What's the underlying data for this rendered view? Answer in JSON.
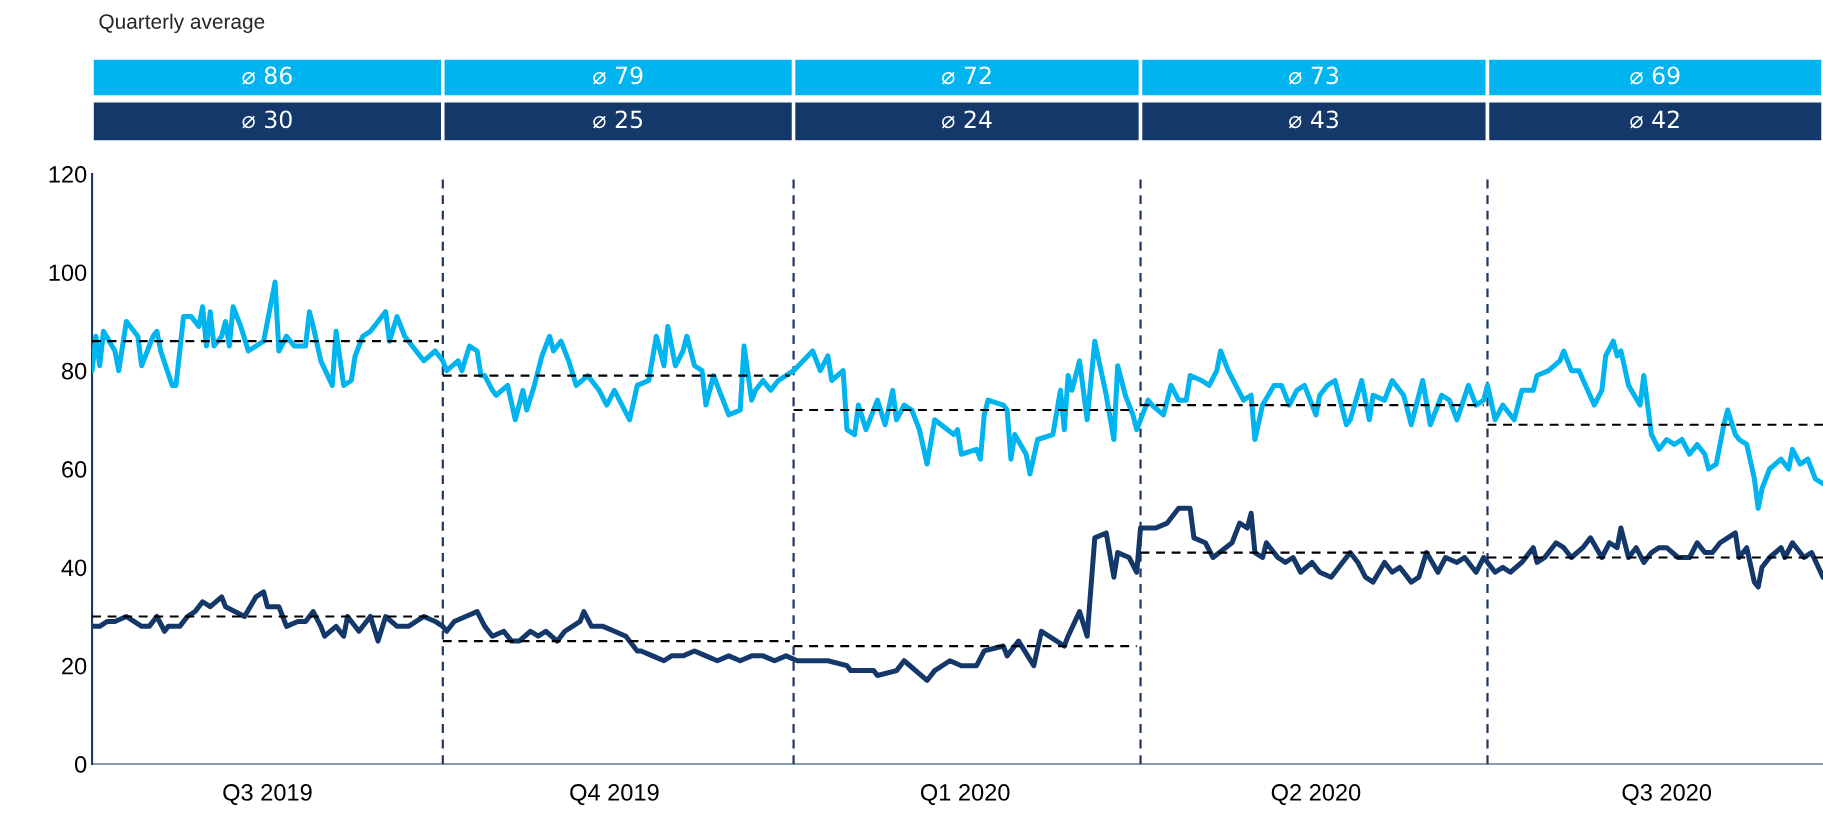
{
  "chart_data": {
    "type": "line",
    "annotations": [
      "Quarterly average",
      "⌀ 86",
      "⌀ 79",
      "⌀ 72",
      "⌀ 73",
      "⌀ 69",
      "⌀ 30",
      "⌀ 25",
      "⌀ 24",
      "⌀ 43",
      "⌀ 42"
    ],
    "xlim": [
      "2019-07-01",
      "2020-09-27"
    ],
    "xticks": [
      {
        "value": "2019-08-16",
        "label": "Q3 2019"
      },
      {
        "value": "2019-11-15",
        "label": "Q4 2019"
      },
      {
        "value": "2020-02-15",
        "label": "Q1 2020"
      },
      {
        "value": "2020-05-17",
        "label": "Q2 2020"
      },
      {
        "value": "2020-08-17",
        "label": "Q3 2020"
      }
    ],
    "ylim": [
      0,
      120
    ],
    "yticks": [
      0,
      20,
      40,
      60,
      80,
      100,
      120
    ],
    "grid": false,
    "ref_lines": [
      {
        "axis": "x",
        "value": "2019-10-01",
        "color": "#1f3864",
        "line_style": "dashed"
      },
      {
        "axis": "x",
        "value": "2020-01-01",
        "color": "#1f3864",
        "line_style": "dashed"
      },
      {
        "axis": "x",
        "value": "2020-04-01",
        "color": "#1f3864",
        "line_style": "dashed"
      },
      {
        "axis": "x",
        "value": "2020-07-01",
        "color": "#1f3864",
        "line_style": "dashed"
      }
    ],
    "series": [
      {
        "color": "#00b4ef",
        "x": [
          "2019-07-01",
          "2019-07-02",
          "2019-07-03",
          "2019-07-04",
          "2019-07-07",
          "2019-07-08",
          "2019-07-10",
          "2019-07-13",
          "2019-07-14",
          "2019-07-17",
          "2019-07-18",
          "2019-07-19",
          "2019-07-22",
          "2019-07-23",
          "2019-07-24",
          "2019-07-25",
          "2019-07-27",
          "2019-07-29",
          "2019-07-30",
          "2019-07-31",
          "2019-08-01",
          "2019-08-02",
          "2019-08-04",
          "2019-08-05",
          "2019-08-06",
          "2019-08-07",
          "2019-08-09",
          "2019-08-11",
          "2019-08-15",
          "2019-08-18",
          "2019-08-19",
          "2019-08-21",
          "2019-08-23",
          "2019-08-26",
          "2019-08-27",
          "2019-08-28",
          "2019-08-30",
          "2019-09-02",
          "2019-09-03",
          "2019-09-05",
          "2019-09-07",
          "2019-09-08",
          "2019-09-10",
          "2019-09-12",
          "2019-09-14",
          "2019-09-16",
          "2019-09-17",
          "2019-09-19",
          "2019-09-21",
          "2019-09-24",
          "2019-09-26",
          "2019-09-29",
          "2019-10-01",
          "2019-10-02",
          "2019-10-05",
          "2019-10-06",
          "2019-10-08",
          "2019-10-10",
          "2019-10-11",
          "2019-10-12",
          "2019-10-14",
          "2019-10-15",
          "2019-10-18",
          "2019-10-20",
          "2019-10-22",
          "2019-10-23",
          "2019-10-25",
          "2019-10-27",
          "2019-10-29",
          "2019-10-30",
          "2019-11-01",
          "2019-11-03",
          "2019-11-05",
          "2019-11-08",
          "2019-11-09",
          "2019-11-11",
          "2019-11-13",
          "2019-11-15",
          "2019-11-17",
          "2019-11-19",
          "2019-11-21",
          "2019-11-24",
          "2019-11-26",
          "2019-11-28",
          "2019-11-29",
          "2019-12-01",
          "2019-12-03",
          "2019-12-04",
          "2019-12-06",
          "2019-12-08",
          "2019-12-09",
          "2019-12-11",
          "2019-12-13",
          "2019-12-15",
          "2019-12-18",
          "2019-12-19",
          "2019-12-21",
          "2019-12-22",
          "2019-12-24",
          "2019-12-26",
          "2019-12-28",
          "2019-12-30",
          "2020-01-01",
          "2020-01-06",
          "2020-01-08",
          "2020-01-10",
          "2020-01-11",
          "2020-01-14",
          "2020-01-15",
          "2020-01-17",
          "2020-01-18",
          "2020-01-20",
          "2020-01-23",
          "2020-01-25",
          "2020-01-27",
          "2020-01-28",
          "2020-01-30",
          "2020-02-01",
          "2020-02-03",
          "2020-02-05",
          "2020-02-07",
          "2020-02-12",
          "2020-02-13",
          "2020-02-14",
          "2020-02-18",
          "2020-02-19",
          "2020-02-20",
          "2020-02-21",
          "2020-02-25",
          "2020-02-26",
          "2020-02-27",
          "2020-02-28",
          "2020-03-02",
          "2020-03-03",
          "2020-03-05",
          "2020-03-09",
          "2020-03-11",
          "2020-03-12",
          "2020-03-13",
          "2020-03-14",
          "2020-03-16",
          "2020-03-18",
          "2020-03-20",
          "2020-03-23",
          "2020-03-25",
          "2020-03-26",
          "2020-03-28",
          "2020-03-30",
          "2020-03-31",
          "2020-04-03",
          "2020-04-04",
          "2020-04-07",
          "2020-04-09",
          "2020-04-11",
          "2020-04-13",
          "2020-04-14",
          "2020-04-17",
          "2020-04-19",
          "2020-04-21",
          "2020-04-22",
          "2020-04-24",
          "2020-04-26",
          "2020-04-28",
          "2020-04-30",
          "2020-05-01",
          "2020-05-03",
          "2020-05-06",
          "2020-05-08",
          "2020-05-10",
          "2020-05-12",
          "2020-05-14",
          "2020-05-17",
          "2020-05-18",
          "2020-05-20",
          "2020-05-22",
          "2020-05-25",
          "2020-05-26",
          "2020-05-29",
          "2020-05-31",
          "2020-06-01",
          "2020-06-04",
          "2020-06-06",
          "2020-06-09",
          "2020-06-11",
          "2020-06-14",
          "2020-06-16",
          "2020-06-19",
          "2020-06-21",
          "2020-06-23",
          "2020-06-26",
          "2020-06-28",
          "2020-06-30",
          "2020-07-01",
          "2020-07-03",
          "2020-07-05",
          "2020-07-08",
          "2020-07-10",
          "2020-07-13",
          "2020-07-14",
          "2020-07-17",
          "2020-07-20",
          "2020-07-21",
          "2020-07-23",
          "2020-07-25",
          "2020-07-29",
          "2020-07-31",
          "2020-08-01",
          "2020-08-03",
          "2020-08-04",
          "2020-08-05",
          "2020-08-07",
          "2020-08-10",
          "2020-08-11",
          "2020-08-13",
          "2020-08-15",
          "2020-08-17",
          "2020-08-19",
          "2020-08-21",
          "2020-08-23",
          "2020-08-25",
          "2020-08-27",
          "2020-08-28",
          "2020-08-30",
          "2020-09-01",
          "2020-09-02",
          "2020-09-04",
          "2020-09-05",
          "2020-09-07",
          "2020-09-09",
          "2020-09-10",
          "2020-09-11",
          "2020-09-13",
          "2020-09-16",
          "2020-09-18",
          "2020-09-19",
          "2020-09-21",
          "2020-09-23",
          "2020-09-25",
          "2020-09-27"
        ],
        "values": [
          80,
          87,
          81,
          88,
          84,
          80,
          90,
          87,
          81,
          87,
          88,
          84,
          77,
          77,
          84,
          91,
          91,
          89,
          93,
          85,
          92,
          85,
          87,
          90,
          85,
          93,
          89,
          84,
          86,
          98,
          84,
          87,
          85,
          85,
          92,
          89,
          82,
          77,
          88,
          77,
          78,
          83,
          87,
          88,
          90,
          92,
          86,
          91,
          87,
          84,
          82,
          84,
          82,
          80,
          82,
          80,
          85,
          84,
          79,
          79,
          76,
          75,
          77,
          70,
          76,
          72,
          77,
          83,
          87,
          84,
          86,
          82,
          77,
          79,
          78,
          76,
          73,
          76,
          73,
          70,
          77,
          78,
          87,
          81,
          89,
          81,
          84,
          87,
          81,
          80,
          73,
          79,
          75,
          71,
          72,
          85,
          74,
          76,
          78,
          76,
          78,
          79,
          80,
          84,
          80,
          83,
          78,
          80,
          68,
          67,
          73,
          68,
          74,
          69,
          76,
          70,
          73,
          72,
          68,
          61,
          70,
          67,
          68,
          63,
          64,
          62,
          71,
          74,
          73,
          72,
          62,
          67,
          63,
          59,
          66,
          67,
          76,
          68,
          79,
          76,
          82,
          70,
          86,
          75,
          66,
          81,
          75,
          71,
          68,
          74,
          73,
          71,
          77,
          74,
          74,
          79,
          78,
          77,
          80,
          84,
          80,
          77,
          74,
          75,
          66,
          73,
          77,
          77,
          73,
          76,
          77,
          71,
          75,
          77,
          78,
          69,
          70,
          78,
          70,
          75,
          74,
          78,
          75,
          69,
          78,
          69,
          75,
          74,
          70,
          77,
          73,
          74,
          77,
          70,
          73,
          70,
          76,
          76,
          79,
          80,
          82,
          84,
          80,
          80,
          73,
          76,
          83,
          86,
          83,
          84,
          77,
          73,
          79,
          67,
          64,
          66,
          65,
          66,
          63,
          65,
          63,
          60,
          61,
          69,
          72,
          67,
          66,
          65,
          58,
          52,
          56,
          60,
          62,
          60,
          64,
          61,
          62,
          58,
          57
        ]
      },
      {
        "color": "#14386a",
        "x": [
          "2019-07-01",
          "2019-07-03",
          "2019-07-05",
          "2019-07-07",
          "2019-07-10",
          "2019-07-12",
          "2019-07-14",
          "2019-07-16",
          "2019-07-18",
          "2019-07-20",
          "2019-07-21",
          "2019-07-24",
          "2019-07-26",
          "2019-07-28",
          "2019-07-30",
          "2019-08-01",
          "2019-08-04",
          "2019-08-05",
          "2019-08-10",
          "2019-08-13",
          "2019-08-15",
          "2019-08-16",
          "2019-08-19",
          "2019-08-21",
          "2019-08-24",
          "2019-08-26",
          "2019-08-28",
          "2019-08-30",
          "2019-08-31",
          "2019-09-03",
          "2019-09-05",
          "2019-09-06",
          "2019-09-09",
          "2019-09-12",
          "2019-09-14",
          "2019-09-16",
          "2019-09-19",
          "2019-09-22",
          "2019-09-24",
          "2019-09-26",
          "2019-09-29",
          "2019-10-01",
          "2019-10-02",
          "2019-10-04",
          "2019-10-07",
          "2019-10-10",
          "2019-10-12",
          "2019-10-14",
          "2019-10-17",
          "2019-10-19",
          "2019-10-21",
          "2019-10-24",
          "2019-10-26",
          "2019-10-28",
          "2019-10-31",
          "2019-11-02",
          "2019-11-04",
          "2019-11-06",
          "2019-11-07",
          "2019-11-09",
          "2019-11-12",
          "2019-11-15",
          "2019-11-18",
          "2019-11-21",
          "2019-11-22",
          "2019-11-25",
          "2019-11-28",
          "2019-11-30",
          "2019-12-03",
          "2019-12-06",
          "2019-12-09",
          "2019-12-12",
          "2019-12-15",
          "2019-12-18",
          "2019-12-21",
          "2019-12-24",
          "2019-12-27",
          "2019-12-30",
          "2020-01-02",
          "2020-01-10",
          "2020-01-15",
          "2020-01-16",
          "2020-01-22",
          "2020-01-23",
          "2020-01-28",
          "2020-01-30",
          "2020-02-05",
          "2020-02-07",
          "2020-02-11",
          "2020-02-14",
          "2020-02-18",
          "2020-02-20",
          "2020-02-25",
          "2020-02-26",
          "2020-02-29",
          "2020-03-04",
          "2020-03-06",
          "2020-03-10",
          "2020-03-12",
          "2020-03-13",
          "2020-03-16",
          "2020-03-18",
          "2020-03-20",
          "2020-03-23",
          "2020-03-25",
          "2020-03-26",
          "2020-03-29",
          "2020-03-31",
          "2020-04-01",
          "2020-04-05",
          "2020-04-08",
          "2020-04-11",
          "2020-04-14",
          "2020-04-15",
          "2020-04-18",
          "2020-04-20",
          "2020-04-25",
          "2020-04-27",
          "2020-04-29",
          "2020-04-30",
          "2020-05-01",
          "2020-05-03",
          "2020-05-04",
          "2020-05-07",
          "2020-05-09",
          "2020-05-11",
          "2020-05-13",
          "2020-05-16",
          "2020-05-18",
          "2020-05-21",
          "2020-05-23",
          "2020-05-26",
          "2020-05-28",
          "2020-05-30",
          "2020-06-01",
          "2020-06-04",
          "2020-06-06",
          "2020-06-08",
          "2020-06-11",
          "2020-06-13",
          "2020-06-15",
          "2020-06-18",
          "2020-06-20",
          "2020-06-23",
          "2020-06-25",
          "2020-06-28",
          "2020-06-30",
          "2020-07-03",
          "2020-07-05",
          "2020-07-07",
          "2020-07-10",
          "2020-07-13",
          "2020-07-14",
          "2020-07-16",
          "2020-07-19",
          "2020-07-21",
          "2020-07-23",
          "2020-07-26",
          "2020-07-28",
          "2020-07-31",
          "2020-08-02",
          "2020-08-04",
          "2020-08-05",
          "2020-08-07",
          "2020-08-09",
          "2020-08-11",
          "2020-08-13",
          "2020-08-15",
          "2020-08-17",
          "2020-08-20",
          "2020-08-23",
          "2020-08-25",
          "2020-08-27",
          "2020-08-29",
          "2020-08-31",
          "2020-09-02",
          "2020-09-04",
          "2020-09-05",
          "2020-09-07",
          "2020-09-09",
          "2020-09-10",
          "2020-09-11",
          "2020-09-13",
          "2020-09-16",
          "2020-09-17",
          "2020-09-19",
          "2020-09-22",
          "2020-09-24",
          "2020-09-27"
        ],
        "values": [
          28,
          28,
          29,
          29,
          30,
          29,
          28,
          28,
          30,
          27,
          28,
          28,
          30,
          31,
          33,
          32,
          34,
          32,
          30,
          34,
          35,
          32,
          32,
          28,
          29,
          29,
          31,
          28,
          26,
          28,
          26,
          30,
          27,
          30,
          25,
          30,
          28,
          28,
          29,
          30,
          29,
          28,
          27,
          29,
          30,
          31,
          28,
          26,
          27,
          25,
          25,
          27,
          26,
          27,
          25,
          27,
          28,
          29,
          31,
          28,
          28,
          27,
          26,
          23,
          23,
          22,
          21,
          22,
          22,
          23,
          22,
          21,
          22,
          21,
          22,
          22,
          21,
          22,
          21,
          21,
          20,
          19,
          19,
          18,
          19,
          21,
          17,
          19,
          21,
          20,
          20,
          23,
          24,
          22,
          25,
          20,
          27,
          25,
          24,
          26,
          31,
          26,
          46,
          47,
          38,
          43,
          42,
          39,
          48,
          48,
          49,
          52,
          52,
          46,
          45,
          42,
          45,
          49,
          48,
          51,
          43,
          42,
          45,
          42,
          41,
          42,
          39,
          41,
          39,
          38,
          40,
          43,
          41,
          38,
          37,
          41,
          39,
          40,
          37,
          38,
          43,
          39,
          42,
          41,
          42,
          39,
          42,
          39,
          40,
          39,
          41,
          44,
          41,
          42,
          45,
          44,
          42,
          44,
          46,
          42,
          45,
          44,
          48,
          42,
          44,
          41,
          43,
          44,
          44,
          42,
          42,
          45,
          43,
          43,
          45,
          46,
          47,
          42,
          44,
          37,
          36,
          40,
          42,
          44,
          42,
          45,
          42,
          43,
          38
        ]
      },
      {
        "color": "#000000",
        "line_style": "dashed",
        "x": [
          "2019-07-01",
          "2019-09-30"
        ],
        "values": [
          86,
          86
        ]
      },
      {
        "color": "#000000",
        "line_style": "dashed",
        "x": [
          "2019-10-01",
          "2019-12-31"
        ],
        "values": [
          79,
          79
        ]
      },
      {
        "color": "#000000",
        "line_style": "dashed",
        "x": [
          "2020-01-01",
          "2020-03-31"
        ],
        "values": [
          72,
          72
        ]
      },
      {
        "color": "#000000",
        "line_style": "dashed",
        "x": [
          "2020-04-01",
          "2020-06-30"
        ],
        "values": [
          73,
          73
        ]
      },
      {
        "color": "#000000",
        "line_style": "dashed",
        "x": [
          "2020-07-01",
          "2020-09-27"
        ],
        "values": [
          69,
          69
        ]
      },
      {
        "color": "#000000",
        "line_style": "dashed",
        "x": [
          "2019-07-01",
          "2019-09-30"
        ],
        "values": [
          30,
          30
        ]
      },
      {
        "color": "#000000",
        "line_style": "dashed",
        "x": [
          "2019-10-01",
          "2019-12-31"
        ],
        "values": [
          25,
          25
        ]
      },
      {
        "color": "#000000",
        "line_style": "dashed",
        "x": [
          "2020-01-01",
          "2020-03-31"
        ],
        "values": [
          24,
          24
        ]
      },
      {
        "color": "#000000",
        "line_style": "dashed",
        "x": [
          "2020-04-01",
          "2020-06-30"
        ],
        "values": [
          43,
          43
        ]
      },
      {
        "color": "#000000",
        "line_style": "dashed",
        "x": [
          "2020-07-01",
          "2020-09-27"
        ],
        "values": [
          42,
          42
        ]
      }
    ]
  }
}
